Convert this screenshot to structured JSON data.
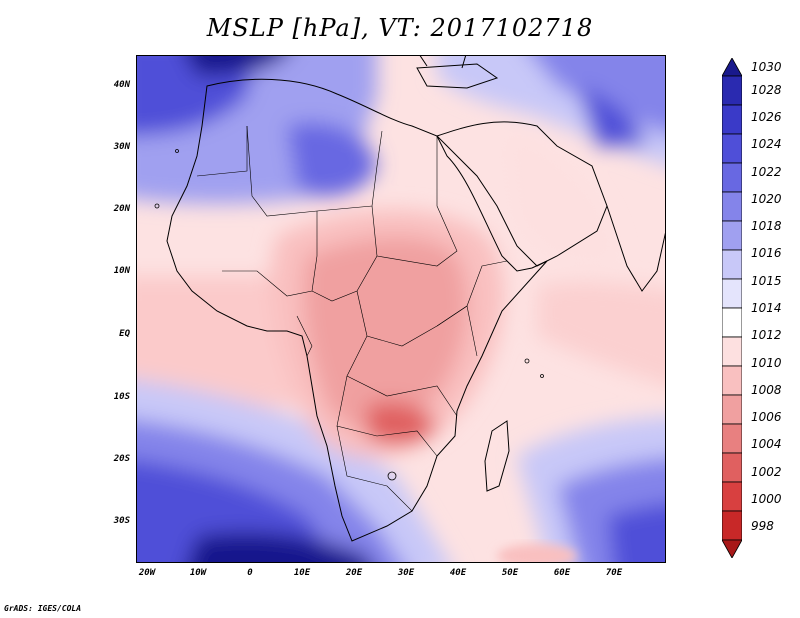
{
  "title": "MSLP [hPa], VT: 2017102718",
  "lat_labels": [
    "40N",
    "30N",
    "20N",
    "10N",
    "EQ",
    "10S",
    "20S",
    "30S"
  ],
  "lon_labels": [
    "20W",
    "10W",
    "0",
    "10E",
    "20E",
    "30E",
    "40E",
    "50E",
    "60E",
    "70E"
  ],
  "colorbar": {
    "labels": [
      "1030",
      "1028",
      "1026",
      "1024",
      "1022",
      "1020",
      "1018",
      "1016",
      "1015",
      "1014",
      "1012",
      "1010",
      "1008",
      "1006",
      "1004",
      "1002",
      "1000",
      "998"
    ],
    "colors": [
      "#19198c",
      "#2a2ab0",
      "#3a3ac8",
      "#4f4fd8",
      "#6868e2",
      "#8484ea",
      "#a0a0f0",
      "#c8c8f8",
      "#e4e4fc",
      "#ffffff",
      "#fde0e0",
      "#f9c0c0",
      "#f0a0a0",
      "#e88080",
      "#e06060",
      "#d84040",
      "#c82828",
      "#a81818"
    ]
  },
  "credit": "GrADS: IGES/COLA"
}
